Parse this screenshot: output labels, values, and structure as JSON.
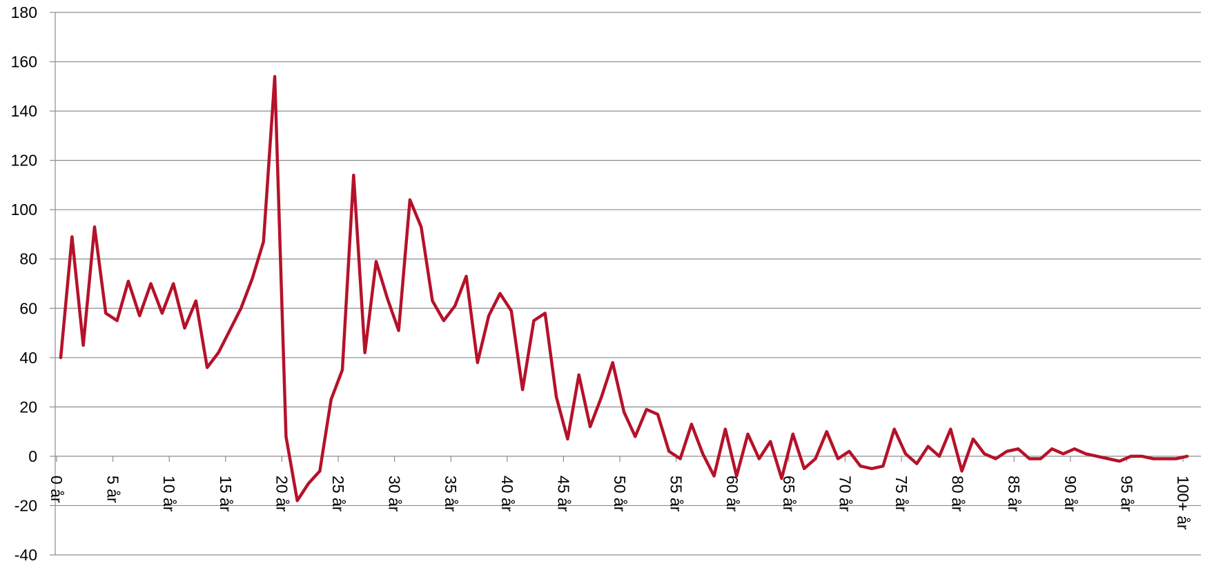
{
  "chart_data": {
    "type": "line",
    "title": "",
    "xlabel": "",
    "ylabel": "",
    "ylim": [
      -40,
      180
    ],
    "yticks": [
      "180",
      "160",
      "140",
      "120",
      "100",
      "80",
      "60",
      "40",
      "20",
      "0",
      "-20",
      "-40"
    ],
    "ytick_values": [
      180,
      160,
      140,
      120,
      100,
      80,
      60,
      40,
      20,
      0,
      -20,
      -40
    ],
    "grid": true,
    "legend": "none",
    "line_color": "#B5122A",
    "grid_color": "#8C8C8C",
    "x_tick_labels": [
      {
        "index": 0,
        "label": "0 år"
      },
      {
        "index": 5,
        "label": "5 år"
      },
      {
        "index": 10,
        "label": "10 år"
      },
      {
        "index": 15,
        "label": "15 år"
      },
      {
        "index": 20,
        "label": "20 år"
      },
      {
        "index": 25,
        "label": "25 år"
      },
      {
        "index": 30,
        "label": "30 år"
      },
      {
        "index": 35,
        "label": "35 år"
      },
      {
        "index": 40,
        "label": "40 år"
      },
      {
        "index": 45,
        "label": "45 år"
      },
      {
        "index": 50,
        "label": "50 år"
      },
      {
        "index": 55,
        "label": "55 år"
      },
      {
        "index": 60,
        "label": "60 år"
      },
      {
        "index": 65,
        "label": "65 år"
      },
      {
        "index": 70,
        "label": "70 år"
      },
      {
        "index": 75,
        "label": "75 år"
      },
      {
        "index": 80,
        "label": "80 år"
      },
      {
        "index": 85,
        "label": "85 år"
      },
      {
        "index": 90,
        "label": "90 år"
      },
      {
        "index": 95,
        "label": "95 år"
      },
      {
        "index": 100,
        "label": "100+ år"
      }
    ],
    "series": [
      {
        "values": [
          40,
          89,
          45,
          93,
          58,
          55,
          71,
          57,
          70,
          58,
          70,
          52,
          63,
          36,
          42,
          51,
          60,
          72,
          87,
          154,
          8,
          -18,
          -11,
          -6,
          23,
          35,
          114,
          42,
          79,
          64,
          51,
          104,
          93,
          63,
          55,
          61,
          73,
          38,
          57,
          66,
          59,
          27,
          55,
          58,
          24,
          7,
          33,
          12,
          24,
          38,
          18,
          8,
          19,
          17,
          2,
          -1,
          13,
          1,
          -8,
          11,
          -8,
          9,
          -1,
          6,
          -9,
          9,
          -5,
          -1,
          10,
          -1,
          2,
          -4,
          -5,
          -4,
          11,
          1,
          -3,
          4,
          0,
          11,
          -6,
          7,
          1,
          -1,
          2,
          3,
          -1,
          -1,
          3,
          1,
          3,
          1,
          0,
          -1,
          -2,
          0,
          0,
          -1,
          -1,
          -1,
          0
        ]
      }
    ]
  }
}
